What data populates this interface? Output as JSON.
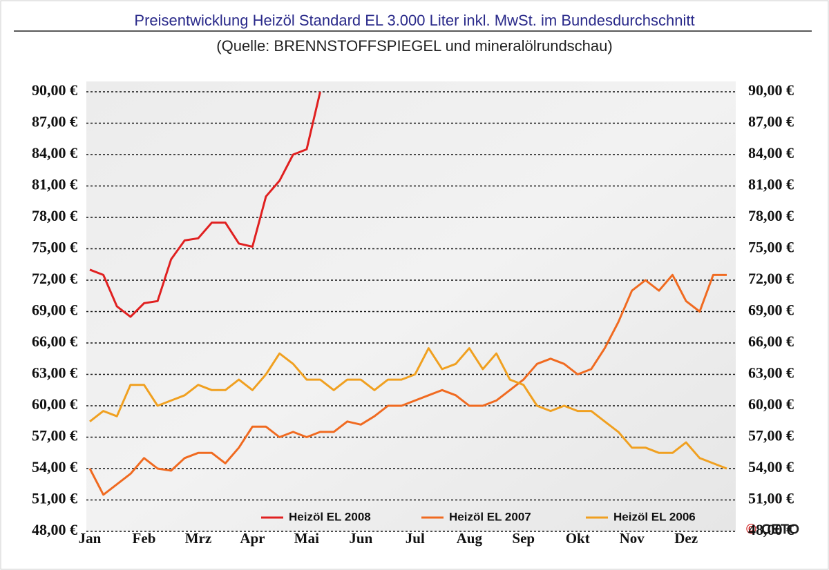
{
  "chart_data": {
    "type": "line",
    "title": "Preisentwicklung Heizöl Standard EL 3.000 Liter inkl. MwSt. im Bundesdurchschnitt",
    "subtitle": "(Quelle: BRENNSTOFFSPIEGEL und mineralölrundschau)",
    "copyright": "©",
    "logo": "CETO",
    "categories": [
      "Jan",
      null,
      null,
      null,
      "Feb",
      null,
      null,
      null,
      "Mrz",
      null,
      null,
      null,
      "Apr",
      null,
      null,
      null,
      "Mai",
      null,
      null,
      null,
      "Jun",
      null,
      null,
      null,
      "Jul",
      null,
      null,
      null,
      "Aug",
      null,
      null,
      null,
      "Sep",
      null,
      null,
      null,
      "Okt",
      null,
      null,
      null,
      "Nov",
      null,
      null,
      null,
      "Dez",
      null,
      null,
      null
    ],
    "series": [
      {
        "name": "Heizöl EL 2008",
        "color": "#e02020",
        "values": [
          73,
          72.5,
          69.5,
          68.5,
          69.8,
          70,
          74,
          75.8,
          76,
          77.5,
          77.5,
          75.5,
          75.2,
          80,
          81.5,
          84,
          84.5,
          90,
          null,
          null,
          null,
          null,
          null,
          null,
          null,
          null,
          null,
          null,
          null,
          null,
          null,
          null,
          null,
          null,
          null,
          null,
          null,
          null,
          null,
          null,
          null,
          null,
          null,
          null,
          null,
          null,
          null,
          null
        ]
      },
      {
        "name": "Heizöl EL 2007",
        "color": "#f06a20",
        "values": [
          54,
          51.5,
          52.5,
          53.5,
          55,
          54,
          53.8,
          55,
          55.5,
          55.5,
          54.5,
          56,
          58,
          58,
          57,
          57.5,
          57,
          57.5,
          57.5,
          58.5,
          58.2,
          59,
          60,
          60,
          60.5,
          61,
          61.5,
          61,
          60,
          60,
          60.5,
          61.5,
          62.5,
          64,
          64.5,
          64,
          63,
          63.5,
          65.5,
          68,
          71,
          72,
          71,
          72.5,
          70,
          69,
          72.5,
          72.5
        ]
      },
      {
        "name": "Heizöl EL 2006",
        "color": "#f0a020",
        "values": [
          58.5,
          59.5,
          59,
          62,
          62,
          60,
          60.5,
          61,
          62,
          61.5,
          61.5,
          62.5,
          61.5,
          63,
          65,
          64,
          62.5,
          62.5,
          61.5,
          62.5,
          62.5,
          61.5,
          62.5,
          62.5,
          63,
          65.5,
          63.5,
          64,
          65.5,
          63.5,
          65,
          62.5,
          62,
          60,
          59.5,
          60,
          59.5,
          59.5,
          58.5,
          57.5,
          56,
          56,
          55.5,
          55.5,
          56.5,
          55,
          54.5,
          54
        ]
      }
    ],
    "ylim": [
      48,
      90
    ],
    "yticks": [
      {
        "value": 48,
        "label": "48,00 €"
      },
      {
        "value": 51,
        "label": "51,00 €"
      },
      {
        "value": 54,
        "label": "54,00 €"
      },
      {
        "value": 57,
        "label": "57,00 €"
      },
      {
        "value": 60,
        "label": "60,00 €"
      },
      {
        "value": 63,
        "label": "63,00 €"
      },
      {
        "value": 66,
        "label": "66,00 €"
      },
      {
        "value": 69,
        "label": "69,00 €"
      },
      {
        "value": 72,
        "label": "72,00 €"
      },
      {
        "value": 75,
        "label": "75,00 €"
      },
      {
        "value": 78,
        "label": "78,00 €"
      },
      {
        "value": 81,
        "label": "81,00 €"
      },
      {
        "value": 84,
        "label": "84,00 €"
      },
      {
        "value": 87,
        "label": "87,00 €"
      },
      {
        "value": 90,
        "label": "90,00 €"
      }
    ],
    "grid": true,
    "legend": "bottom"
  }
}
